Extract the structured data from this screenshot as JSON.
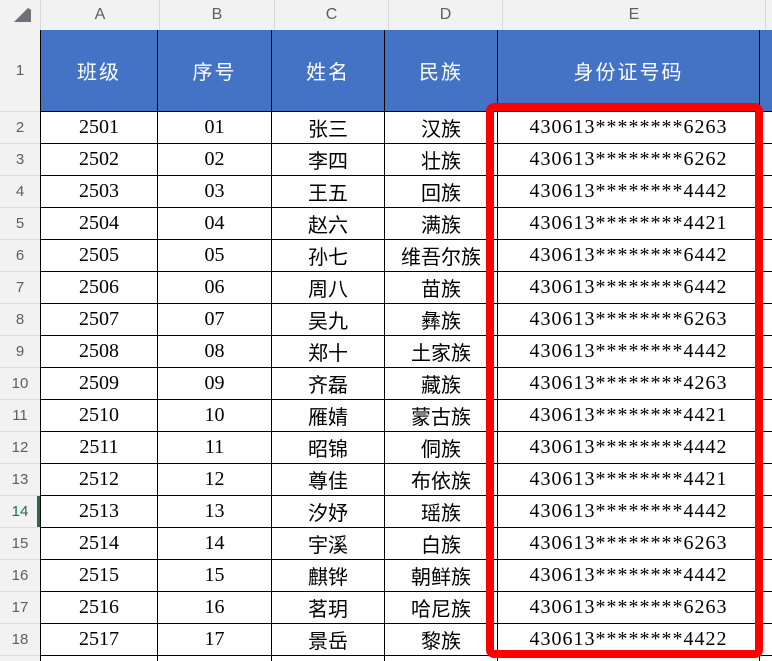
{
  "sheet": {
    "column_letters": [
      "A",
      "B",
      "C",
      "D",
      "E"
    ],
    "header_row_num": "1",
    "header_labels": [
      "班级",
      "序号",
      "姓名",
      "民族",
      "身份证号码"
    ],
    "active_row": "14",
    "rows": [
      {
        "num": "2",
        "cells": [
          "2501",
          "01",
          "张三",
          "汉族",
          "430613********6263"
        ]
      },
      {
        "num": "3",
        "cells": [
          "2502",
          "02",
          "李四",
          "壮族",
          "430613********6262"
        ]
      },
      {
        "num": "4",
        "cells": [
          "2503",
          "03",
          "王五",
          "回族",
          "430613********4442"
        ]
      },
      {
        "num": "5",
        "cells": [
          "2504",
          "04",
          "赵六",
          "满族",
          "430613********4421"
        ]
      },
      {
        "num": "6",
        "cells": [
          "2505",
          "05",
          "孙七",
          "维吾尔族",
          "430613********6442"
        ]
      },
      {
        "num": "7",
        "cells": [
          "2506",
          "06",
          "周八",
          "苗族",
          "430613********6442"
        ]
      },
      {
        "num": "8",
        "cells": [
          "2507",
          "07",
          "吴九",
          "彝族",
          "430613********6263"
        ]
      },
      {
        "num": "9",
        "cells": [
          "2508",
          "08",
          "郑十",
          "土家族",
          "430613********4442"
        ]
      },
      {
        "num": "10",
        "cells": [
          "2509",
          "09",
          "齐磊",
          "藏族",
          "430613********4263"
        ]
      },
      {
        "num": "11",
        "cells": [
          "2510",
          "10",
          "雁婧",
          "蒙古族",
          "430613********4421"
        ]
      },
      {
        "num": "12",
        "cells": [
          "2511",
          "11",
          "昭锦",
          "侗族",
          "430613********4442"
        ]
      },
      {
        "num": "13",
        "cells": [
          "2512",
          "12",
          "尊佳",
          "布依族",
          "430613********4421"
        ]
      },
      {
        "num": "14",
        "cells": [
          "2513",
          "13",
          "汐妤",
          "瑶族",
          "430613********4442"
        ],
        "active": true
      },
      {
        "num": "15",
        "cells": [
          "2514",
          "14",
          "宇溪",
          "白族",
          "430613********6263"
        ]
      },
      {
        "num": "16",
        "cells": [
          "2515",
          "15",
          "麒铧",
          "朝鲜族",
          "430613********4442"
        ]
      },
      {
        "num": "17",
        "cells": [
          "2516",
          "16",
          "茗玥",
          "哈尼族",
          "430613********6263"
        ]
      },
      {
        "num": "18",
        "cells": [
          "2517",
          "17",
          "景岳",
          "黎族",
          "430613********4422"
        ]
      }
    ],
    "colors": {
      "header_fill": "#4472C4",
      "header_text": "#FFFFFF",
      "highlight_border": "#FE0000",
      "active_row_accent": "#1E7145",
      "grid_line": "#000000"
    }
  }
}
